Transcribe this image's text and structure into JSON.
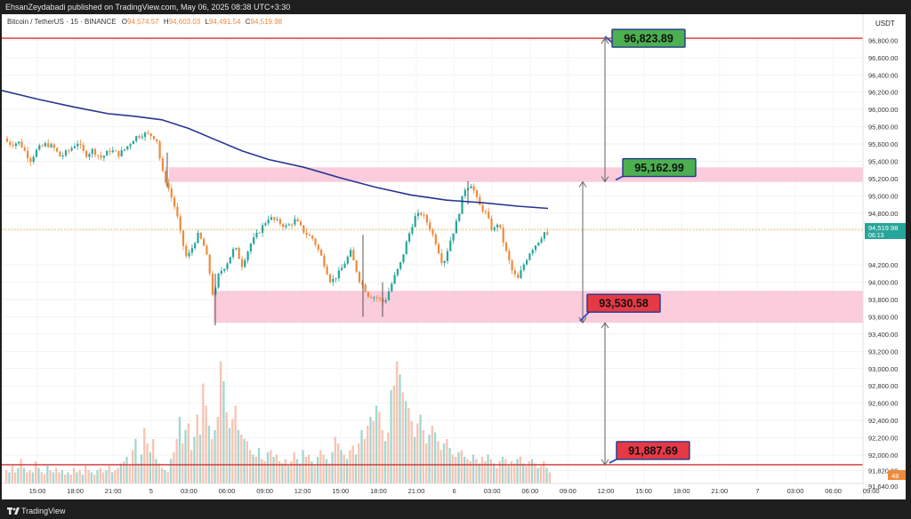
{
  "header": {
    "publisher": "EhsanZeydabadi published on TradingView.com, May 06, 2025 08:38 UTC+3:30"
  },
  "legend": {
    "symbol": "Bitcoin / TetherUS · 15 · BINANCE",
    "o_label": "O",
    "o_value": "94,574.57",
    "h_label": "H",
    "h_value": "94,603.03",
    "l_label": "L",
    "l_value": "94,491.54",
    "c_label": "C",
    "c_value": "94,519.98"
  },
  "footer": {
    "brand": "TradingView"
  },
  "colors": {
    "up": "#26a69a",
    "down": "#ef8a3c",
    "ma": "#283593",
    "zone": "#f8bbd0",
    "level": "#d32f2f",
    "green_label": "#4caf50",
    "red_label": "#e53945"
  },
  "chart_data": {
    "type": "candlestick",
    "quote": "USDT",
    "y_ticks": [
      "96,800.00",
      "96,600.00",
      "96,400.00",
      "96,200.00",
      "96,000.00",
      "95,800.00",
      "95,600.00",
      "95,400.00",
      "95,200.00",
      "95,000.00",
      "94,800.00",
      "94,600.00",
      "94,200.00",
      "94,000.00",
      "93,800.00",
      "93,600.00",
      "93,400.00",
      "93,200.00",
      "93,000.00",
      "92,800.00",
      "92,600.00",
      "92,400.00",
      "92,200.00",
      "92,000.00",
      "91,820.00",
      "91,640.00"
    ],
    "x_ticks": [
      "15:00",
      "18:00",
      "21:00",
      "5",
      "03:00",
      "06:00",
      "09:00",
      "12:00",
      "15:00",
      "18:00",
      "21:00",
      "6",
      "03:00",
      "06:00",
      "09:00",
      "12:00",
      "15:00",
      "18:00",
      "21:00",
      "7",
      "03:00",
      "06:00",
      "09:00"
    ],
    "last_price": "94,519.98",
    "countdown": "06:13",
    "volume_badge": "48",
    "ylim": [
      91520,
      97170
    ],
    "price_path": [
      [
        0,
        95665
      ],
      [
        10,
        95600
      ],
      [
        20,
        95620
      ],
      [
        32,
        95410
      ],
      [
        40,
        95540
      ],
      [
        50,
        95600
      ],
      [
        58,
        95560
      ],
      [
        66,
        95450
      ],
      [
        76,
        95530
      ],
      [
        85,
        95620
      ],
      [
        94,
        95470
      ],
      [
        102,
        95530
      ],
      [
        112,
        95440
      ],
      [
        122,
        95530
      ],
      [
        132,
        95480
      ],
      [
        140,
        95560
      ],
      [
        150,
        95680
      ],
      [
        160,
        95720
      ],
      [
        168,
        95700
      ],
      [
        174,
        95660
      ],
      [
        180,
        95290
      ],
      [
        188,
        95070
      ],
      [
        196,
        94820
      ],
      [
        202,
        94500
      ],
      [
        208,
        94270
      ],
      [
        214,
        94400
      ],
      [
        220,
        94550
      ],
      [
        226,
        94460
      ],
      [
        232,
        94230
      ],
      [
        238,
        93800
      ],
      [
        244,
        94100
      ],
      [
        252,
        94200
      ],
      [
        262,
        94410
      ],
      [
        270,
        94200
      ],
      [
        280,
        94450
      ],
      [
        290,
        94600
      ],
      [
        300,
        94750
      ],
      [
        310,
        94700
      ],
      [
        320,
        94640
      ],
      [
        330,
        94720
      ],
      [
        340,
        94580
      ],
      [
        350,
        94500
      ],
      [
        360,
        94280
      ],
      [
        370,
        94000
      ],
      [
        380,
        94120
      ],
      [
        392,
        94350
      ],
      [
        402,
        94030
      ],
      [
        412,
        93850
      ],
      [
        422,
        93820
      ],
      [
        430,
        93760
      ],
      [
        440,
        94030
      ],
      [
        448,
        94210
      ],
      [
        456,
        94500
      ],
      [
        464,
        94750
      ],
      [
        472,
        94800
      ],
      [
        480,
        94660
      ],
      [
        488,
        94460
      ],
      [
        496,
        94200
      ],
      [
        504,
        94480
      ],
      [
        512,
        94720
      ],
      [
        520,
        95080
      ],
      [
        528,
        95140
      ],
      [
        536,
        94900
      ],
      [
        544,
        94800
      ],
      [
        552,
        94580
      ],
      [
        558,
        94700
      ],
      [
        566,
        94380
      ],
      [
        574,
        94120
      ],
      [
        580,
        94030
      ],
      [
        586,
        94190
      ],
      [
        594,
        94360
      ],
      [
        602,
        94460
      ],
      [
        610,
        94580
      ],
      [
        614,
        94520
      ]
    ],
    "ma_path": [
      [
        0,
        96220
      ],
      [
        40,
        96120
      ],
      [
        80,
        96030
      ],
      [
        120,
        95950
      ],
      [
        150,
        95920
      ],
      [
        180,
        95880
      ],
      [
        210,
        95780
      ],
      [
        240,
        95650
      ],
      [
        270,
        95520
      ],
      [
        300,
        95420
      ],
      [
        340,
        95330
      ],
      [
        380,
        95210
      ],
      [
        420,
        95100
      ],
      [
        460,
        95010
      ],
      [
        500,
        94950
      ],
      [
        540,
        94920
      ],
      [
        580,
        94880
      ],
      [
        614,
        94855
      ]
    ],
    "volume": [
      12,
      10,
      16,
      10,
      14,
      22,
      14,
      10,
      12,
      10,
      20,
      14,
      10,
      8,
      16,
      12,
      10,
      14,
      10,
      12,
      8,
      10,
      8,
      14,
      10,
      12,
      8,
      16,
      12,
      10,
      8,
      12,
      14,
      10,
      12,
      16,
      10,
      12,
      14,
      18,
      20,
      24,
      16,
      30,
      40,
      18,
      26,
      50,
      36,
      28,
      40,
      22,
      18,
      14,
      12,
      10,
      22,
      28,
      40,
      60,
      36,
      48,
      54,
      30,
      42,
      62,
      44,
      90,
      70,
      52,
      40,
      48,
      60,
      110,
      92,
      64,
      50,
      58,
      70,
      48,
      44,
      40,
      38,
      30,
      26,
      24,
      32,
      22,
      20,
      28,
      30,
      24,
      26,
      20,
      18,
      22,
      16,
      20,
      28,
      22,
      18,
      30,
      24,
      26,
      20,
      16,
      24,
      30,
      26,
      22,
      18,
      28,
      42,
      36,
      30,
      26,
      22,
      30,
      34,
      26,
      36,
      48,
      40,
      52,
      60,
      56,
      70,
      64,
      48,
      38,
      46,
      84,
      88,
      110,
      98,
      82,
      74,
      68,
      56,
      42,
      54,
      62,
      48,
      36,
      44,
      52,
      46,
      38,
      30,
      36,
      40,
      32,
      26,
      24,
      28,
      30,
      24,
      22,
      20,
      26,
      22,
      18,
      24,
      20,
      26,
      22,
      18,
      14,
      20,
      24,
      22,
      16,
      20,
      18,
      22,
      24,
      18,
      16,
      20,
      22,
      18,
      14,
      16,
      20,
      14,
      10
    ],
    "zones": [
      [
        95160,
        95330
      ],
      [
        93530,
        93900
      ]
    ],
    "levels": [
      "96,823.89",
      "91,887.69"
    ],
    "labels": [
      {
        "text": "96,823.89",
        "price": 96823.89,
        "color": "green"
      },
      {
        "text": "95,162.99",
        "price": 95162.99,
        "color": "green"
      },
      {
        "text": "93,530.58",
        "price": 93530.58,
        "color": "red"
      },
      {
        "text": "91,887.69",
        "price": 91887.69,
        "color": "red"
      }
    ]
  }
}
